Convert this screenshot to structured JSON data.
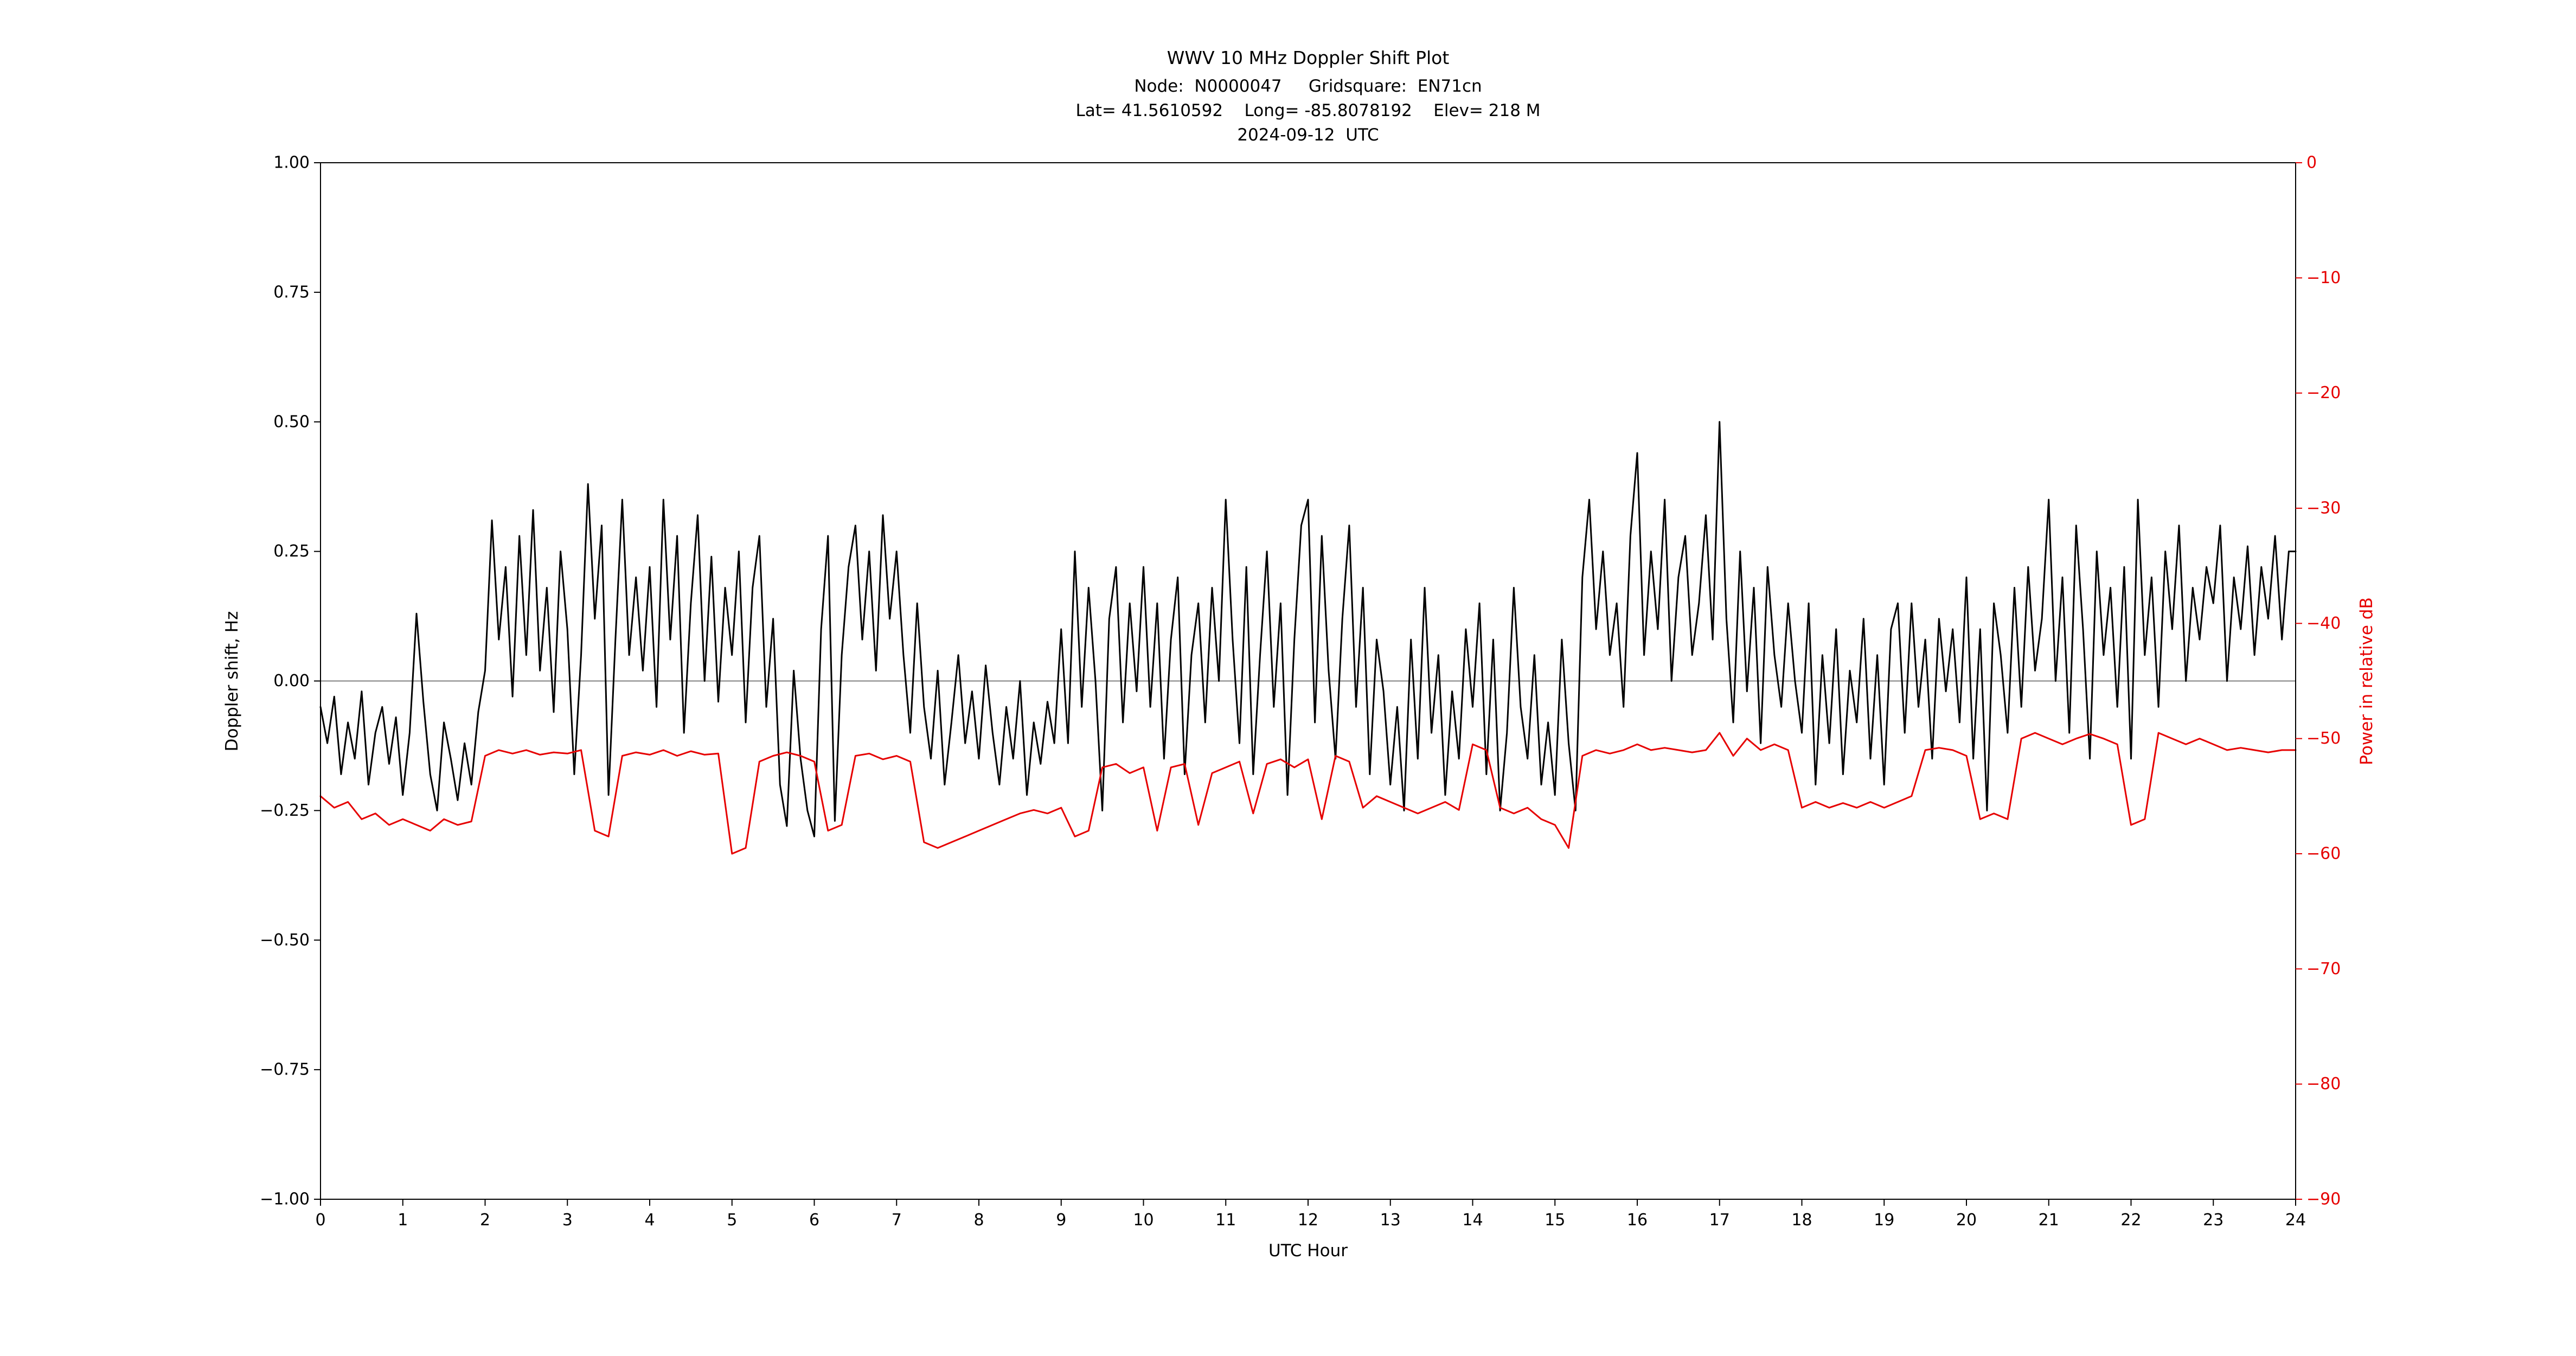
{
  "figure": {
    "background": "#ffffff",
    "title_lines": [
      "WWV 10 MHz Doppler Shift Plot",
      "Node:  N0000047     Gridsquare:  EN71cn",
      "Lat= 41.5610592    Long= -85.8078192    Elev= 218 M",
      "2024-09-12  UTC"
    ]
  },
  "station": {
    "node": "N0000047",
    "gridsquare": "EN71cn",
    "lat": "41.5610592",
    "long": "-85.8078192",
    "elevation": "218 M",
    "date": "2024-09-12",
    "timezone": "UTC"
  },
  "colors": {
    "doppler": "#000000",
    "power": "#e60000",
    "zero_line": "#808080",
    "axis": "#000000",
    "background": "#ffffff"
  },
  "chart_data": {
    "type": "line",
    "title": "WWV 10 MHz Doppler Shift Plot",
    "xlabel": "UTC Hour",
    "ylabel_left": "Doppler shift, Hz",
    "ylabel_right": "Power in relative dB",
    "grid": false,
    "legend": "none",
    "zero_line_y": 0,
    "x_range": [
      0,
      24
    ],
    "x_ticks": [
      0,
      1,
      2,
      3,
      4,
      5,
      6,
      7,
      8,
      9,
      10,
      11,
      12,
      13,
      14,
      15,
      16,
      17,
      18,
      19,
      20,
      21,
      22,
      23,
      24
    ],
    "x_tick_labels": [
      "0",
      "1",
      "2",
      "3",
      "4",
      "5",
      "6",
      "7",
      "8",
      "9",
      "10",
      "11",
      "12",
      "13",
      "14",
      "15",
      "16",
      "17",
      "18",
      "19",
      "20",
      "21",
      "22",
      "23",
      "24"
    ],
    "y_left_range": [
      -1.0,
      1.0
    ],
    "y_left_ticks": [
      1.0,
      0.75,
      0.5,
      0.25,
      0.0,
      -0.25,
      -0.5,
      -0.75,
      -1.0
    ],
    "y_left_tick_labels": [
      "1.00",
      "0.75",
      "0.50",
      "0.25",
      "0.00",
      "−0.25",
      "−0.50",
      "−0.75",
      "−1.00"
    ],
    "y_right_range": [
      -90,
      0
    ],
    "y_right_ticks": [
      0,
      -10,
      -20,
      -30,
      -40,
      -50,
      -60,
      -70,
      -80,
      -90
    ],
    "y_right_tick_labels": [
      "0",
      "−10",
      "−20",
      "−30",
      "−40",
      "−50",
      "−60",
      "−70",
      "−80",
      "−90"
    ],
    "series": [
      {
        "name": "doppler-shift-hz",
        "axis": "left",
        "color": "#000000",
        "x_start": 0,
        "x_step_hours": 0.0833333,
        "values": [
          -0.05,
          -0.12,
          -0.03,
          -0.18,
          -0.08,
          -0.15,
          -0.02,
          -0.2,
          -0.1,
          -0.05,
          -0.16,
          -0.07,
          -0.22,
          -0.1,
          0.13,
          -0.04,
          -0.18,
          -0.25,
          -0.08,
          -0.15,
          -0.23,
          -0.12,
          -0.2,
          -0.06,
          0.02,
          0.31,
          0.08,
          0.22,
          -0.03,
          0.28,
          0.05,
          0.33,
          0.02,
          0.18,
          -0.06,
          0.25,
          0.1,
          -0.18,
          0.05,
          0.38,
          0.12,
          0.3,
          -0.22,
          0.08,
          0.35,
          0.05,
          0.2,
          0.02,
          0.22,
          -0.05,
          0.35,
          0.08,
          0.28,
          -0.1,
          0.15,
          0.32,
          0.0,
          0.24,
          -0.04,
          0.18,
          0.05,
          0.25,
          -0.08,
          0.18,
          0.28,
          -0.05,
          0.12,
          -0.2,
          -0.28,
          0.02,
          -0.15,
          -0.25,
          -0.3,
          0.1,
          0.28,
          -0.27,
          0.05,
          0.22,
          0.3,
          0.08,
          0.25,
          0.02,
          0.32,
          0.12,
          0.25,
          0.05,
          -0.1,
          0.15,
          -0.05,
          -0.15,
          0.02,
          -0.2,
          -0.08,
          0.05,
          -0.12,
          -0.02,
          -0.15,
          0.03,
          -0.1,
          -0.2,
          -0.05,
          -0.15,
          0.0,
          -0.22,
          -0.08,
          -0.16,
          -0.04,
          -0.12,
          0.1,
          -0.12,
          0.25,
          -0.05,
          0.18,
          0.0,
          -0.25,
          0.12,
          0.22,
          -0.08,
          0.15,
          -0.02,
          0.22,
          -0.05,
          0.15,
          -0.15,
          0.08,
          0.2,
          -0.18,
          0.05,
          0.15,
          -0.08,
          0.18,
          0.0,
          0.35,
          0.08,
          -0.12,
          0.22,
          -0.18,
          0.05,
          0.25,
          -0.05,
          0.15,
          -0.22,
          0.08,
          0.3,
          0.35,
          -0.08,
          0.28,
          0.02,
          -0.15,
          0.12,
          0.3,
          -0.05,
          0.18,
          -0.18,
          0.08,
          -0.02,
          -0.2,
          -0.05,
          -0.25,
          0.08,
          -0.15,
          0.18,
          -0.1,
          0.05,
          -0.22,
          -0.02,
          -0.15,
          0.1,
          -0.05,
          0.15,
          -0.18,
          0.08,
          -0.25,
          -0.1,
          0.18,
          -0.05,
          -0.15,
          0.05,
          -0.2,
          -0.08,
          -0.22,
          0.08,
          -0.12,
          -0.25,
          0.2,
          0.35,
          0.1,
          0.25,
          0.05,
          0.15,
          -0.05,
          0.28,
          0.44,
          0.05,
          0.25,
          0.1,
          0.35,
          0.0,
          0.2,
          0.28,
          0.05,
          0.15,
          0.32,
          0.08,
          0.5,
          0.12,
          -0.08,
          0.25,
          -0.02,
          0.18,
          -0.12,
          0.22,
          0.05,
          -0.05,
          0.15,
          0.0,
          -0.1,
          0.15,
          -0.2,
          0.05,
          -0.12,
          0.1,
          -0.18,
          0.02,
          -0.08,
          0.12,
          -0.15,
          0.05,
          -0.2,
          0.1,
          0.15,
          -0.1,
          0.15,
          -0.05,
          0.08,
          -0.15,
          0.12,
          -0.02,
          0.1,
          -0.08,
          0.2,
          -0.15,
          0.1,
          -0.25,
          0.15,
          0.05,
          -0.1,
          0.18,
          -0.05,
          0.22,
          0.02,
          0.12,
          0.35,
          0.0,
          0.2,
          -0.1,
          0.3,
          0.1,
          -0.15,
          0.25,
          0.05,
          0.18,
          -0.05,
          0.22,
          -0.15,
          0.35,
          0.05,
          0.2,
          -0.05,
          0.25,
          0.1,
          0.3,
          0.0,
          0.18,
          0.08,
          0.22,
          0.15,
          0.3,
          0.0,
          0.2,
          0.1,
          0.26,
          0.05,
          0.22,
          0.12,
          0.28,
          0.08,
          0.25,
          0.25
        ]
      },
      {
        "name": "power-relative-db",
        "axis": "right",
        "color": "#e60000",
        "x_start": 0,
        "x_step_hours": 0.1666667,
        "values": [
          -55,
          -56,
          -55.5,
          -57,
          -56.5,
          -57.5,
          -57,
          -57.5,
          -58,
          -57,
          -57.5,
          -57.2,
          -51.5,
          -51,
          -51.3,
          -51,
          -51.4,
          -51.2,
          -51.3,
          -51,
          -58,
          -58.5,
          -51.5,
          -51.2,
          -51.4,
          -51,
          -51.5,
          -51.1,
          -51.4,
          -51.3,
          -60,
          -59.5,
          -52,
          -51.5,
          -51.2,
          -51.5,
          -52,
          -58,
          -57.5,
          -51.5,
          -51.3,
          -51.8,
          -51.5,
          -52,
          -59,
          -59.5,
          -59,
          -58.5,
          -58,
          -57.5,
          -57,
          -56.5,
          -56.2,
          -56.5,
          -56,
          -58.5,
          -58,
          -52.5,
          -52.2,
          -53,
          -52.5,
          -58,
          -52.5,
          -52.2,
          -57.5,
          -53,
          -52.5,
          -52,
          -56.5,
          -52.2,
          -51.8,
          -52.5,
          -51.8,
          -57,
          -51.5,
          -52,
          -56,
          -55,
          -55.5,
          -56,
          -56.5,
          -56,
          -55.5,
          -56.2,
          -50.5,
          -51,
          -56,
          -56.5,
          -56,
          -57,
          -57.5,
          -59.5,
          -51.5,
          -51,
          -51.3,
          -51,
          -50.5,
          -51,
          -50.8,
          -51,
          -51.2,
          -51,
          -49.5,
          -51.5,
          -50,
          -51,
          -50.5,
          -51,
          -56,
          -55.5,
          -56,
          -55.6,
          -56,
          -55.5,
          -56,
          -55.5,
          -55,
          -51,
          -50.8,
          -51,
          -51.5,
          -57,
          -56.5,
          -57,
          -50,
          -49.5,
          -50,
          -50.5,
          -50,
          -49.6,
          -50,
          -50.5,
          -57.5,
          -57,
          -49.5,
          -50,
          -50.5,
          -50,
          -50.5,
          -51,
          -50.8,
          -51,
          -51.2,
          -51,
          -51
        ]
      }
    ]
  }
}
